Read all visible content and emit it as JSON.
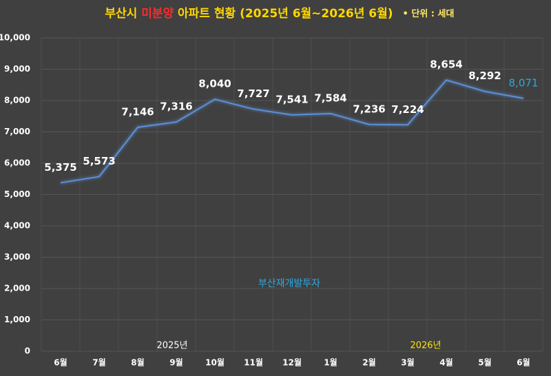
{
  "chart_data": {
    "type": "line",
    "title_parts": [
      "부산시 ",
      "미분양",
      " 아파트 현황 (2025년 6월~2026년 6월)"
    ],
    "unit_note": "• 단위 : 세대",
    "categories": [
      "6월",
      "7월",
      "8월",
      "9월",
      "10월",
      "11월",
      "12월",
      "1월",
      "2월",
      "3월",
      "4월",
      "5월",
      "6월"
    ],
    "series": [
      {
        "name": "미분양",
        "color": "#5b8fd6",
        "values": [
          5375,
          5573,
          7146,
          7316,
          8040,
          7727,
          7541,
          7584,
          7236,
          7224,
          8654,
          8292,
          8071
        ],
        "value_labels": [
          "5,375",
          "5,573",
          "7,146",
          "7,316",
          "8,040",
          "7,727",
          "7,541",
          "7,584",
          "7,236",
          "7,224",
          "8,654",
          "8,292",
          "8,071"
        ]
      }
    ],
    "ylim": [
      0,
      10000
    ],
    "yticks": [
      0,
      {
        "value": 1000,
        "label": "1,000"
      },
      {
        "value": 2000,
        "label": "2,000"
      },
      {
        "value": 3000,
        "label": "3,000"
      },
      {
        "value": 4000,
        "label": "4,000"
      },
      {
        "value": 5000,
        "label": "5,000"
      },
      {
        "value": 6000,
        "label": "6,000"
      },
      {
        "value": 7000,
        "label": "7,000"
      },
      {
        "value": 8000,
        "label": "8,000"
      },
      {
        "value": 9000,
        "label": "9,000"
      },
      {
        "value": 10000,
        "label": "10,000"
      }
    ],
    "grid": true,
    "year_labels": [
      "2025년",
      "2026년"
    ],
    "watermark": "부산재개발투자"
  }
}
